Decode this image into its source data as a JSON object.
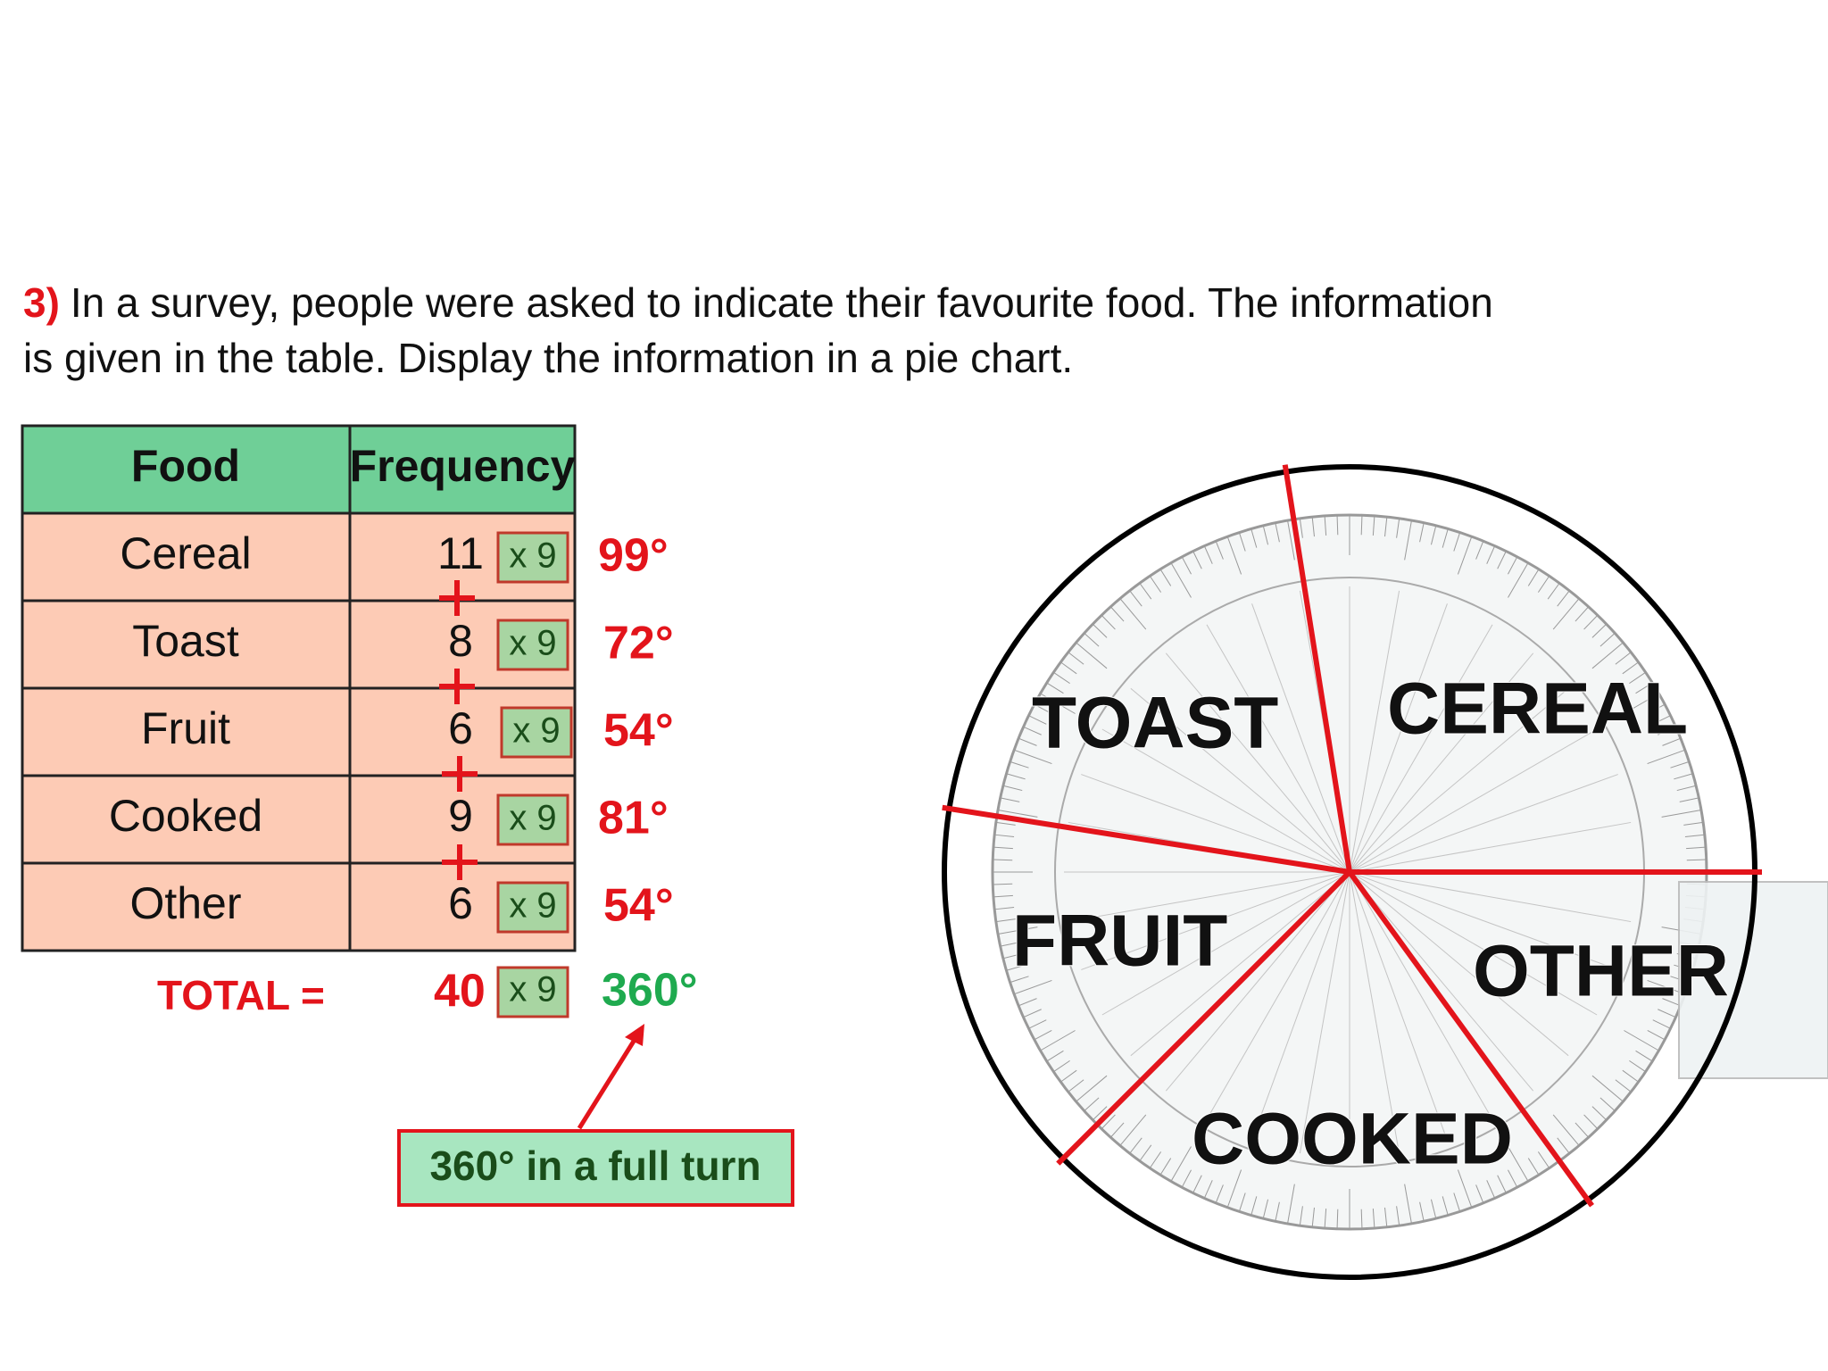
{
  "question": {
    "number": "3)",
    "lines": [
      "In a survey, people were asked to indicate their favourite food. The information",
      "is given in the table. Display the information in a pie chart."
    ]
  },
  "table": {
    "headers": [
      "Food",
      "Frequency"
    ],
    "rows": [
      {
        "food": "Cereal",
        "frequency": "11",
        "multiplier": "x 9",
        "angle": {
          "value": 99,
          "label": "99°"
        }
      },
      {
        "food": "Toast",
        "frequency": "8",
        "multiplier": "x 9",
        "angle": {
          "value": 72,
          "label": "72°"
        }
      },
      {
        "food": "Fruit",
        "frequency": "6",
        "multiplier": "x 9",
        "angle": {
          "value": 54,
          "label": "54°"
        }
      },
      {
        "food": "Cooked",
        "frequency": "9",
        "multiplier": "x 9",
        "angle": {
          "value": 81,
          "label": "81°"
        }
      },
      {
        "food": "Other",
        "frequency": "6",
        "multiplier": "x 9",
        "angle": {
          "value": 54,
          "label": "54°"
        }
      }
    ]
  },
  "total": {
    "label": "TOTAL =",
    "value": "40",
    "multiplier": "x 9",
    "angle": "360°"
  },
  "callout": "360° in a full turn",
  "pie_labels": [
    "CEREAL",
    "TOAST",
    "FRUIT",
    "COOKED",
    "OTHER"
  ]
}
